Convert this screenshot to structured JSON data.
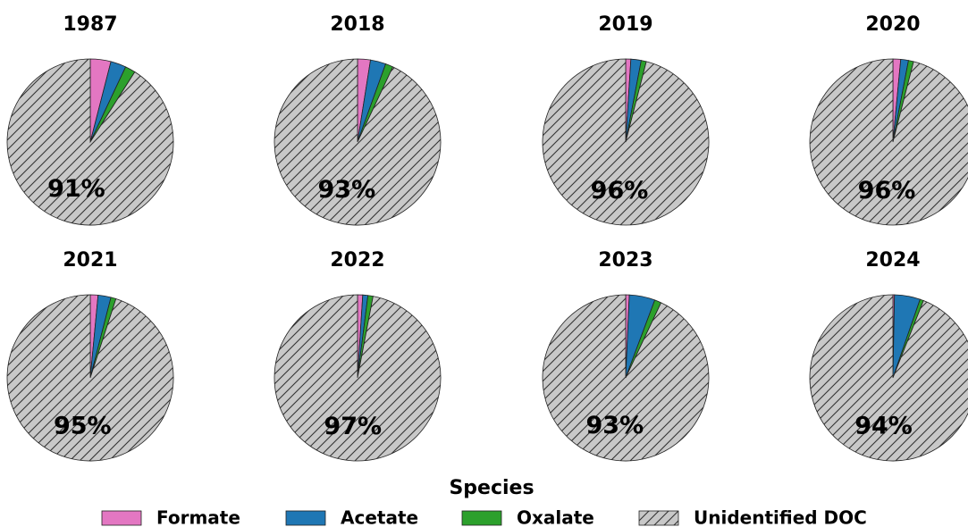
{
  "legend": {
    "title": "Species",
    "labels": [
      "Formate",
      "Acetate",
      "Oxalate",
      "Unidentified DOC"
    ],
    "colors": [
      "#e377c2",
      "#1f77b4",
      "#2ca02c",
      "#c8c8c8"
    ],
    "hatch": [
      false,
      false,
      false,
      true
    ]
  },
  "chart_data": [
    {
      "type": "pie",
      "title": "1987",
      "values": [
        4,
        3,
        2,
        91
      ],
      "value_labels": [
        null,
        null,
        null,
        "91%"
      ]
    },
    {
      "type": "pie",
      "title": "2018",
      "values": [
        2.5,
        3,
        1.5,
        93
      ],
      "value_labels": [
        null,
        null,
        null,
        "93%"
      ]
    },
    {
      "type": "pie",
      "title": "2019",
      "values": [
        1,
        2,
        1,
        96
      ],
      "value_labels": [
        null,
        null,
        null,
        "96%"
      ]
    },
    {
      "type": "pie",
      "title": "2020",
      "values": [
        1.5,
        1.5,
        1,
        96
      ],
      "value_labels": [
        null,
        null,
        null,
        "96%"
      ]
    },
    {
      "type": "pie",
      "title": "2021",
      "values": [
        1.5,
        2.5,
        1,
        95
      ],
      "value_labels": [
        null,
        null,
        null,
        "95%"
      ]
    },
    {
      "type": "pie",
      "title": "2022",
      "values": [
        1,
        1,
        1,
        97
      ],
      "value_labels": [
        null,
        null,
        null,
        "97%"
      ]
    },
    {
      "type": "pie",
      "title": "2023",
      "values": [
        0.7,
        5,
        1.3,
        93
      ],
      "value_labels": [
        null,
        null,
        null,
        "93%"
      ]
    },
    {
      "type": "pie",
      "title": "2024",
      "values": [
        0.3,
        5,
        0.7,
        94
      ],
      "value_labels": [
        null,
        null,
        null,
        "94%"
      ]
    }
  ]
}
